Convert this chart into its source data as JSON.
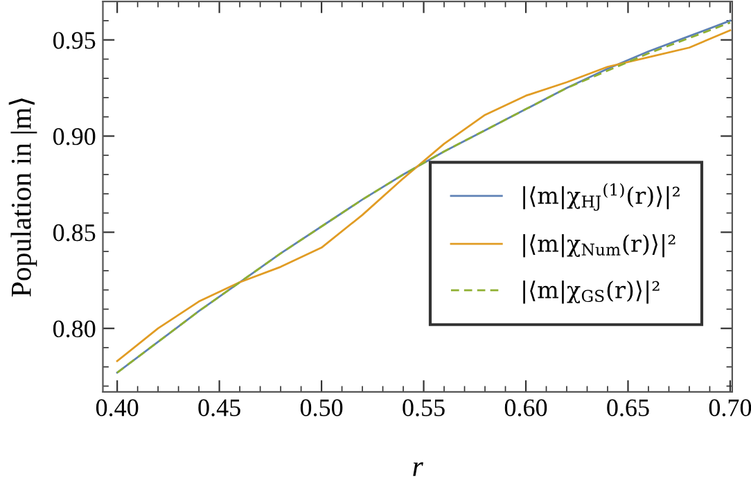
{
  "chart_data": {
    "type": "line",
    "xlabel": "r",
    "ylabel": "Population in |m⟩",
    "xlim": [
      0.393,
      0.701
    ],
    "ylim": [
      0.767,
      0.97
    ],
    "xticks": [
      {
        "value": 0.4,
        "label": "0.40"
      },
      0.45,
      {
        "value": 0.5,
        "label": "0.50"
      },
      0.55,
      {
        "value": 0.6,
        "label": "0.60"
      },
      0.65,
      {
        "value": 0.7,
        "label": "0.70"
      }
    ],
    "yticks": [
      {
        "value": 0.8,
        "label": "0.80"
      },
      0.85,
      {
        "value": 0.9,
        "label": "0.90"
      },
      0.95
    ],
    "x": [
      0.4,
      0.42,
      0.44,
      0.46,
      0.48,
      0.5,
      0.52,
      0.54,
      0.56,
      0.58,
      0.6,
      0.62,
      0.64,
      0.66,
      0.68,
      0.7
    ],
    "series": [
      {
        "name": "|⟨m|χ$_{HJ}$$^{(1)}$(r)⟩|²",
        "color": "#5e81b5",
        "line_style": "solid",
        "values": [
          0.777,
          0.793,
          0.809,
          0.824,
          0.839,
          0.853,
          0.867,
          0.88,
          0.892,
          0.903,
          0.914,
          0.925,
          0.935,
          0.944,
          0.952,
          0.96
        ]
      },
      {
        "name": "|⟨m|χ$_{Num}$(r)⟩|²",
        "color": "#e19c24",
        "line_style": "solid",
        "values": [
          0.783,
          0.8,
          0.814,
          0.824,
          0.832,
          0.842,
          0.859,
          0.878,
          0.896,
          0.911,
          0.921,
          0.928,
          0.936,
          0.941,
          0.946,
          0.955
        ]
      },
      {
        "name": "|⟨m|χ$_{GS}$(r)⟩|²",
        "color": "#8fb032",
        "line_style": "dashed",
        "values": [
          0.777,
          0.793,
          0.809,
          0.824,
          0.839,
          0.853,
          0.867,
          0.88,
          0.892,
          0.903,
          0.914,
          0.925,
          0.934,
          0.943,
          0.951,
          0.959
        ]
      }
    ],
    "legend": "right",
    "grid": false,
    "marker": "none"
  }
}
